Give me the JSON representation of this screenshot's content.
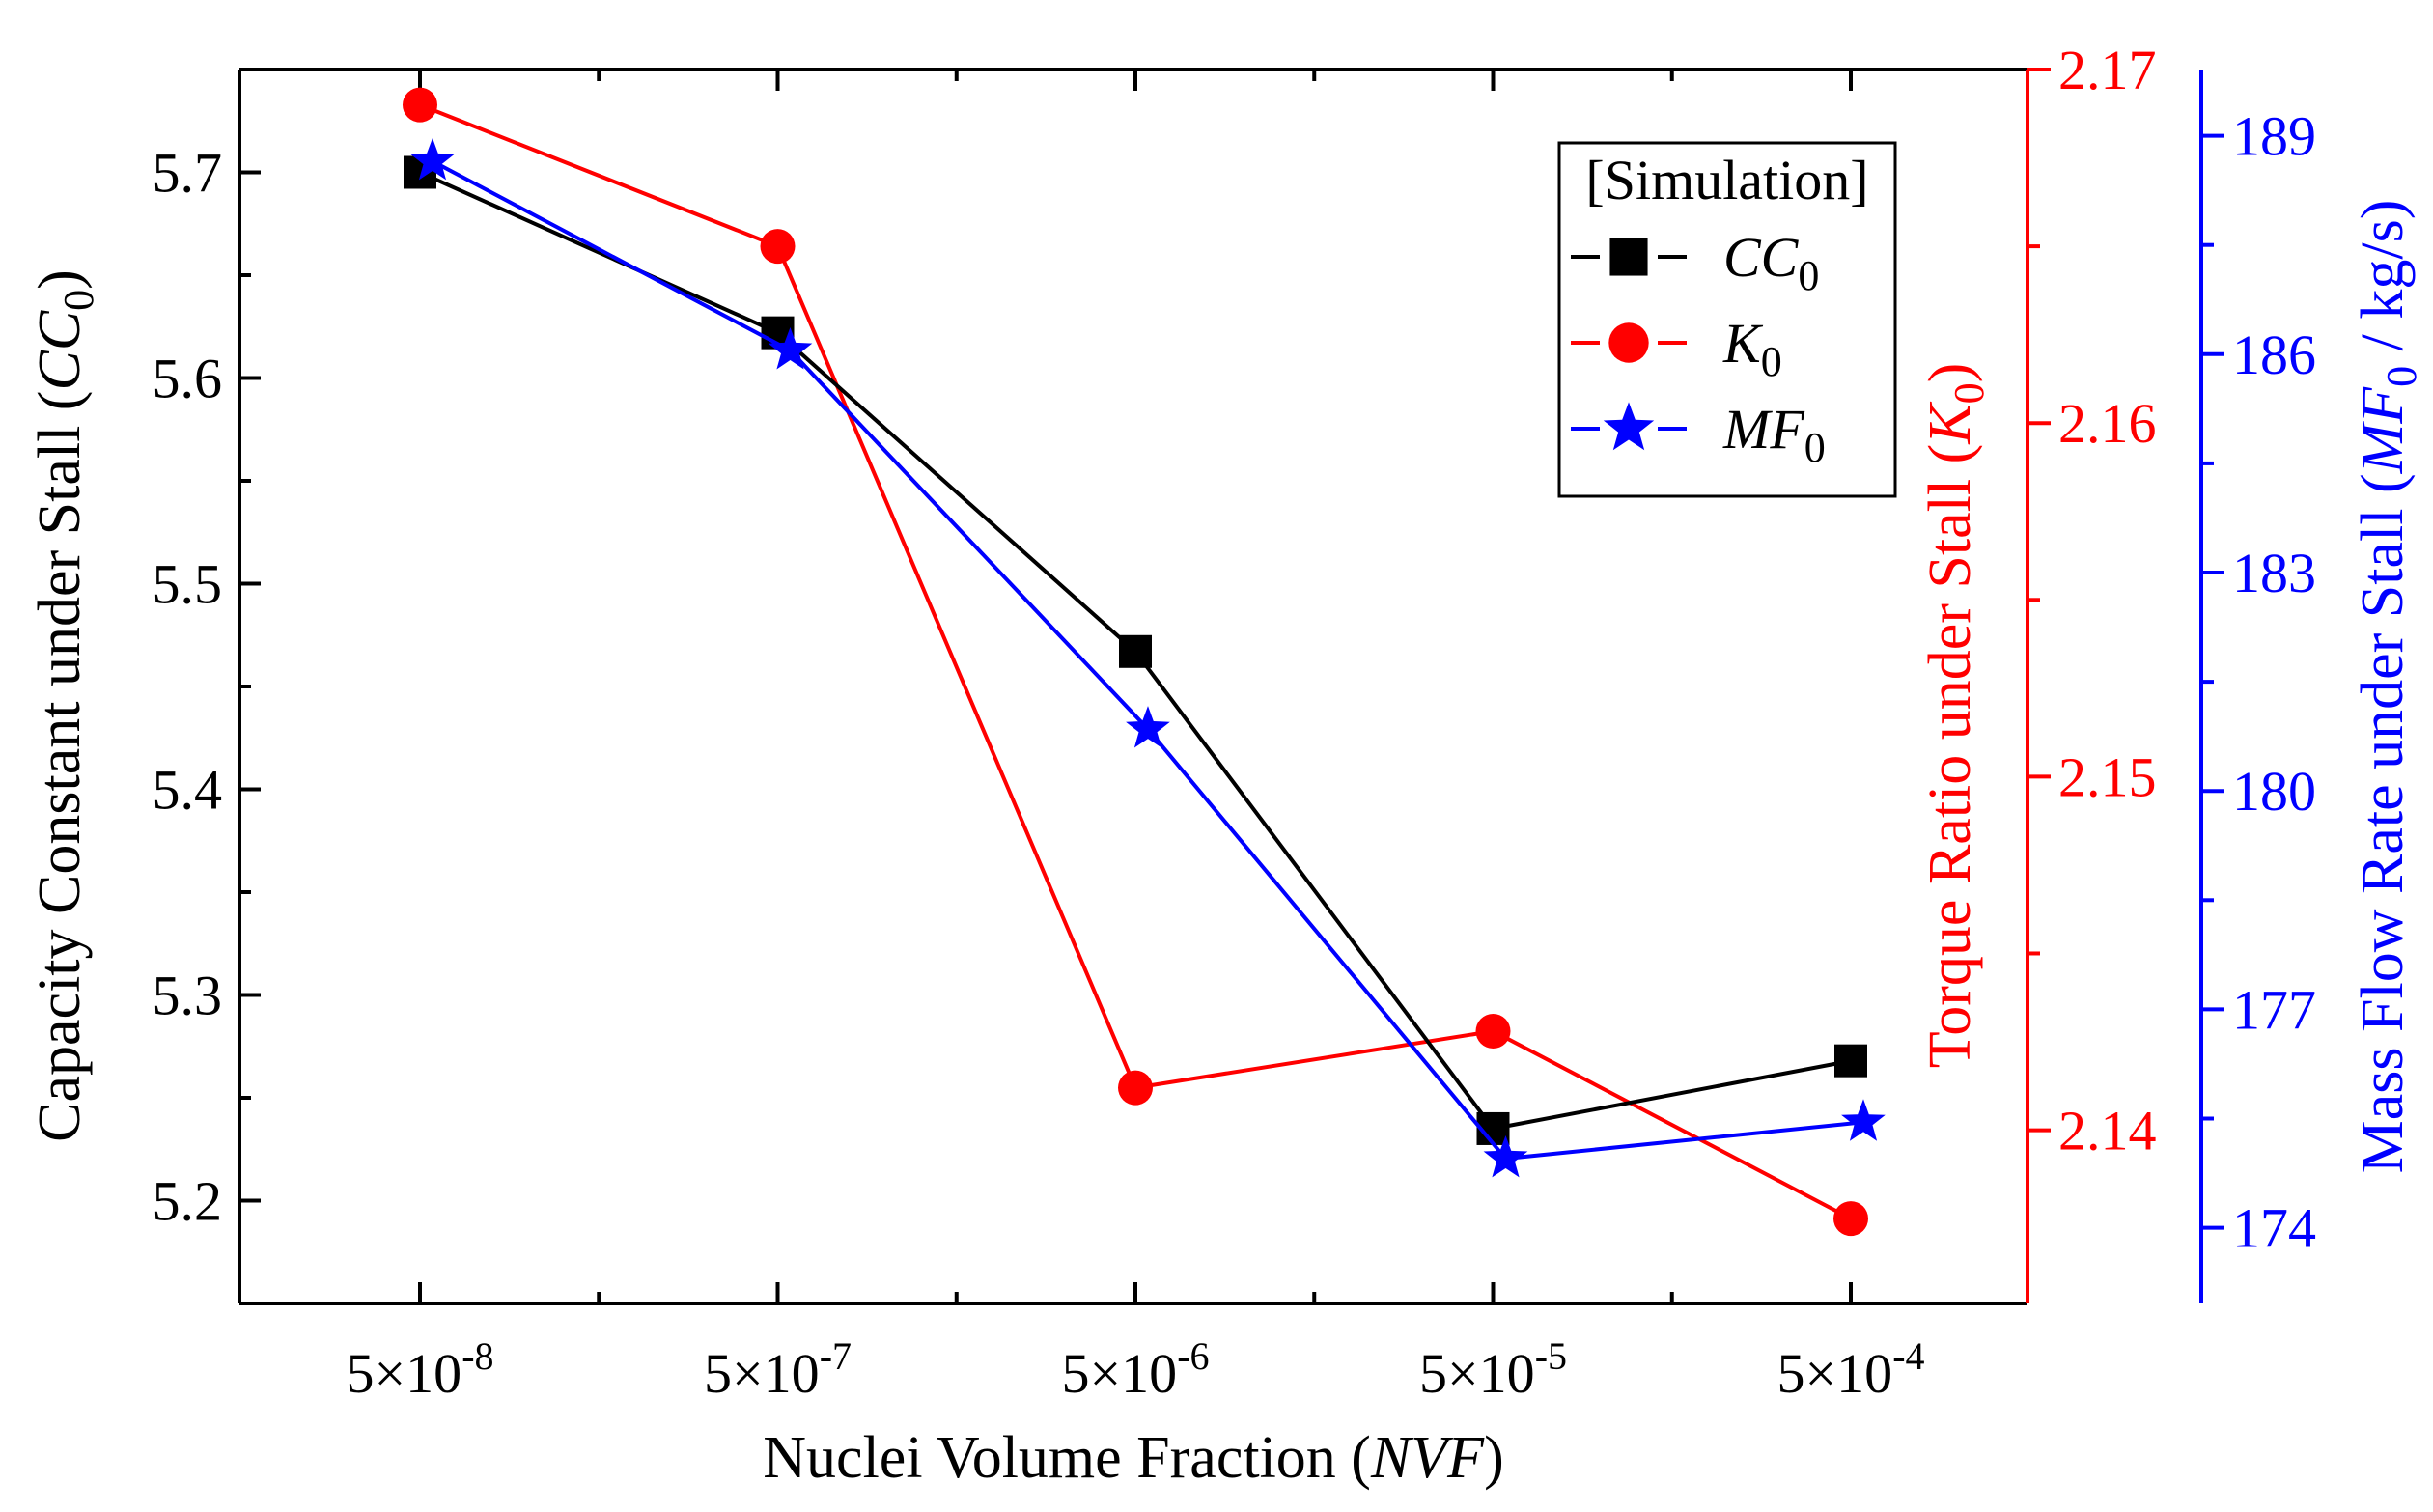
{
  "chart_data": {
    "type": "line",
    "x_categories": [
      "5×10",
      "5×10",
      "5×10",
      "5×10",
      "5×10"
    ],
    "x_exponents": [
      "-8",
      "-7",
      "-6",
      "-5",
      "-4"
    ],
    "x_values": [
      5e-08,
      5e-07,
      5e-06,
      5e-05,
      0.0005
    ],
    "xlabel": {
      "prefix": "Nuclei Volume Fraction (",
      "italic": "NVF",
      "suffix": ")"
    },
    "axes": {
      "left": {
        "label_prefix": "Capacity Constant under Stall (",
        "label_italic": "CC",
        "label_sub": "0",
        "label_suffix": ")",
        "ylim": [
          5.15,
          5.75
        ],
        "ticks": [
          "5.2",
          "5.3",
          "5.4",
          "5.5",
          "5.6",
          "5.7"
        ],
        "color": "#000000"
      },
      "right_torque": {
        "label_prefix": "Torque Ratio under Stall (",
        "label_italic": "K",
        "label_sub": "0",
        "label_suffix": ")",
        "ylim": [
          2.1351,
          2.17
        ],
        "ticks": [
          "2.14",
          "2.15",
          "2.16",
          "2.17"
        ],
        "color": "#ff0000"
      },
      "right_mass": {
        "label_prefix": "Mass Flow Rate under Stall (",
        "label_italic": "MF",
        "label_sub": "0",
        "label_suffix": " / kg/s)",
        "ylim": [
          172.96,
          189.91
        ],
        "ticks": [
          "174",
          "177",
          "180",
          "183",
          "186",
          "189"
        ],
        "color": "#0000ff"
      }
    },
    "series": [
      {
        "name": "CC",
        "sub": "0",
        "axis": "left",
        "marker": "square",
        "color": "#000000",
        "x_offset": 0,
        "values": [
          5.7,
          5.622,
          5.467,
          5.235,
          5.268
        ]
      },
      {
        "name": "K",
        "sub": "0",
        "axis": "right_torque",
        "marker": "circle",
        "color": "#ff0000",
        "x_offset": 0,
        "values": [
          2.169,
          2.165,
          2.1412,
          2.1428,
          2.1375
        ]
      },
      {
        "name": "MF",
        "sub": "0",
        "axis": "right_mass",
        "marker": "star",
        "color": "#0000ff",
        "x_offset": 0.035,
        "values": [
          188.65,
          186.05,
          180.85,
          174.95,
          175.45
        ]
      }
    ],
    "legend": {
      "title": "[Simulation]",
      "position": "top-right"
    }
  }
}
